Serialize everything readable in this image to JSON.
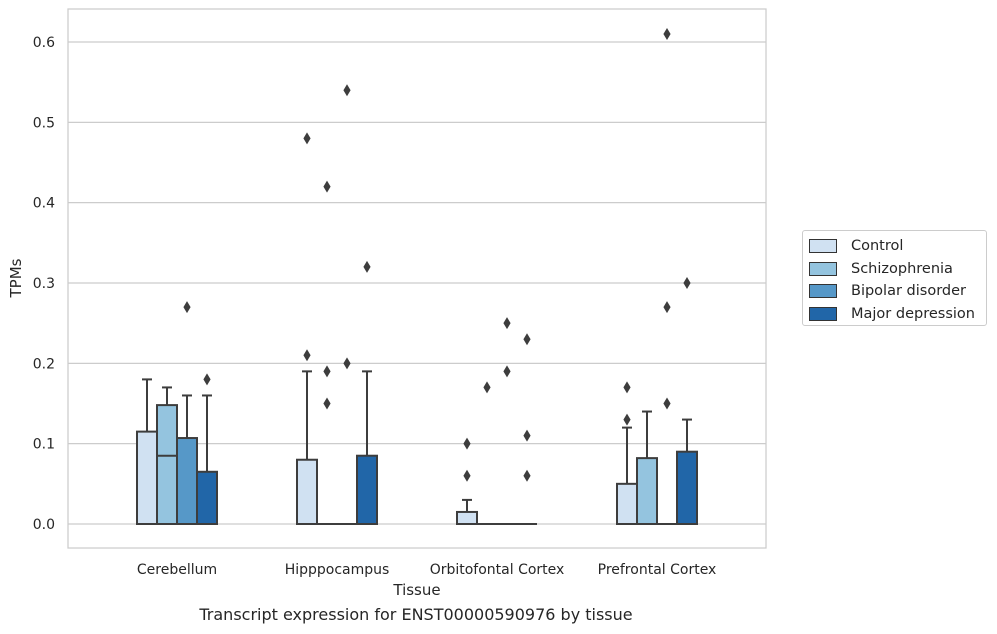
{
  "chart_data": {
    "type": "box",
    "title": "",
    "caption": "Transcript expression for ENST00000590976 by tissue",
    "xlabel": "Tissue",
    "ylabel": "TPMs",
    "ylim": [
      -0.03,
      0.64
    ],
    "yticks": [
      0.0,
      0.1,
      0.2,
      0.3,
      0.4,
      0.5,
      0.6
    ],
    "ytick_labels": [
      "0.0",
      "0.1",
      "0.2",
      "0.3",
      "0.4",
      "0.5",
      "0.6"
    ],
    "grid": true,
    "legend_position": "right",
    "categories": [
      "Cerebellum",
      "Hipppocampus",
      "Orbitofontal Cortex",
      "Prefrontal Cortex"
    ],
    "series": [
      {
        "name": "Control",
        "color": "#d0e1f2",
        "boxes": [
          {
            "q1": 0.0,
            "median": 0.0,
            "q3": 0.115,
            "whisker_low": 0.0,
            "whisker_high": 0.18,
            "outliers": []
          },
          {
            "q1": 0.0,
            "median": 0.0,
            "q3": 0.08,
            "whisker_low": 0.0,
            "whisker_high": 0.19,
            "outliers": [
              0.21,
              0.48
            ]
          },
          {
            "q1": 0.0,
            "median": 0.0,
            "q3": 0.015,
            "whisker_low": 0.0,
            "whisker_high": 0.03,
            "outliers": [
              0.06,
              0.1
            ]
          },
          {
            "q1": 0.0,
            "median": 0.0,
            "q3": 0.05,
            "whisker_low": 0.0,
            "whisker_high": 0.12,
            "outliers": [
              0.13,
              0.17
            ]
          }
        ]
      },
      {
        "name": "Schizophrenia",
        "color": "#94c4df",
        "boxes": [
          {
            "q1": 0.0,
            "median": 0.085,
            "q3": 0.148,
            "whisker_low": 0.0,
            "whisker_high": 0.17,
            "outliers": []
          },
          {
            "q1": 0.0,
            "median": 0.0,
            "q3": 0.0,
            "whisker_low": 0.0,
            "whisker_high": 0.0,
            "outliers": [
              0.15,
              0.19,
              0.42
            ]
          },
          {
            "q1": 0.0,
            "median": 0.0,
            "q3": 0.0,
            "whisker_low": 0.0,
            "whisker_high": 0.0,
            "outliers": [
              0.17
            ]
          },
          {
            "q1": 0.0,
            "median": 0.0,
            "q3": 0.082,
            "whisker_low": 0.0,
            "whisker_high": 0.14,
            "outliers": []
          }
        ]
      },
      {
        "name": "Bipolar disorder",
        "color": "#5698c8",
        "boxes": [
          {
            "q1": 0.0,
            "median": 0.0,
            "q3": 0.107,
            "whisker_low": 0.0,
            "whisker_high": 0.16,
            "outliers": [
              0.27
            ]
          },
          {
            "q1": 0.0,
            "median": 0.0,
            "q3": 0.0,
            "whisker_low": 0.0,
            "whisker_high": 0.0,
            "outliers": [
              0.2,
              0.54
            ]
          },
          {
            "q1": 0.0,
            "median": 0.0,
            "q3": 0.0,
            "whisker_low": 0.0,
            "whisker_high": 0.0,
            "outliers": [
              0.19,
              0.25
            ]
          },
          {
            "q1": 0.0,
            "median": 0.0,
            "q3": 0.0,
            "whisker_low": 0.0,
            "whisker_high": 0.0,
            "outliers": [
              0.15,
              0.27,
              0.61
            ]
          }
        ]
      },
      {
        "name": "Major depression",
        "color": "#2166a8",
        "boxes": [
          {
            "q1": 0.0,
            "median": 0.0,
            "q3": 0.065,
            "whisker_low": 0.0,
            "whisker_high": 0.16,
            "outliers": [
              0.18
            ]
          },
          {
            "q1": 0.0,
            "median": 0.0,
            "q3": 0.085,
            "whisker_low": 0.0,
            "whisker_high": 0.19,
            "outliers": [
              0.32
            ]
          },
          {
            "q1": 0.0,
            "median": 0.0,
            "q3": 0.0,
            "whisker_low": 0.0,
            "whisker_high": 0.0,
            "outliers": [
              0.06,
              0.11,
              0.23
            ]
          },
          {
            "q1": 0.0,
            "median": 0.0,
            "q3": 0.09,
            "whisker_low": 0.0,
            "whisker_high": 0.13,
            "outliers": [
              0.3
            ]
          }
        ]
      }
    ]
  }
}
